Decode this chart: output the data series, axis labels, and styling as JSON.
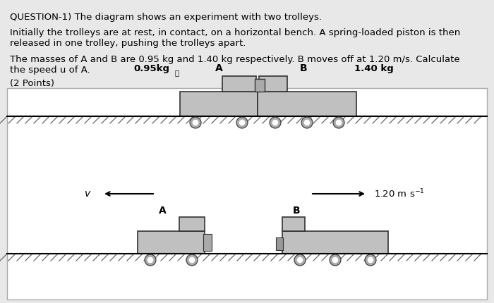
{
  "bg_color": "#e8e8e8",
  "diagram_bg": "#ffffff",
  "text_color": "#000000",
  "trolley_color": "#c0c0c0",
  "trolley_edge": "#333333",
  "q_line1": "QUESTION-1) The diagram shows an experiment with two trolleys.",
  "q_line2": "Initially the trolleys are at rest, in contact, on a horizontal bench. A spring-loaded piston is then\nreleased in one trolley, pushing the trolleys apart.",
  "q_line3": "The masses of A and B are 0.95 kg and 1.40 kg respectively. B moves off at 1.20 m/s. Calculate\nthe speed u of A.",
  "q_line4": "(2 Points)",
  "label_A_mass": "0.95kg",
  "label_B_mass": "1.40 kg",
  "label_A": "A",
  "label_B": "B",
  "label_v": "v",
  "label_speed": "1.20 m s",
  "wheel_color": "#aaaaaa",
  "wheel_inner": "#ffffff",
  "hatch_color": "#555555",
  "ground_color": "#000000"
}
